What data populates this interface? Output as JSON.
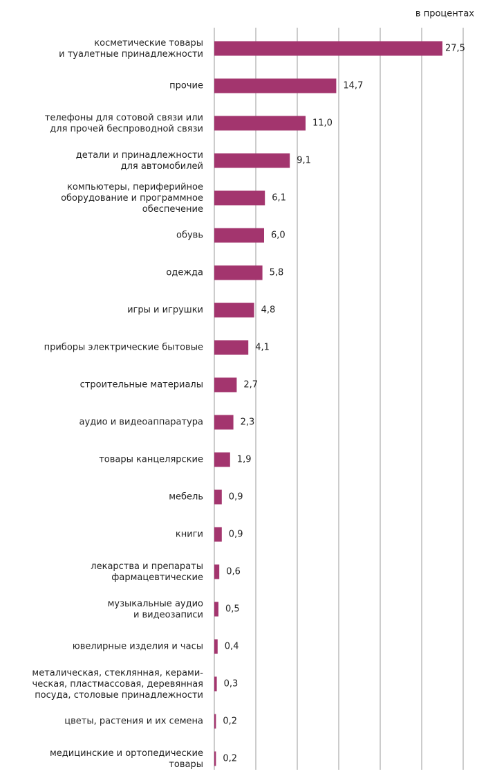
{
  "chart_data": {
    "type": "bar",
    "orientation": "horizontal",
    "subtitle": "в процентах",
    "categories": [
      "косметические товары\nи туалетные принадлежности",
      "прочие",
      "телефоны для сотовой связи или\nдля прочей беспроводной связи",
      "детали и принадлежности\nдля автомобилей",
      "компьютеры, периферийное\nоборудование и программное\nобеспечение",
      "обувь",
      "одежда",
      "игры и игрушки",
      "приборы электрические бытовые",
      "строительные материалы",
      "аудио и видеоаппаратура",
      "товары канцелярские",
      "мебель",
      "книги",
      "лекарства и препараты\nфармацевтические",
      "музыкальные аудио\nи видеозаписи",
      "ювелирные изделия и часы",
      "металическая, стеклянная, керами-\nческая, пластмассовая, деревянная\nпосуда, столовые принадлежности",
      "цветы, растения и их семена",
      "медицинские и ортопедические\nтовары"
    ],
    "values": [
      27.5,
      14.7,
      11.0,
      9.1,
      6.1,
      6.0,
      5.8,
      4.8,
      4.1,
      2.7,
      2.3,
      1.9,
      0.9,
      0.9,
      0.6,
      0.5,
      0.4,
      0.3,
      0.2,
      0.2
    ],
    "value_labels": [
      "27,5",
      "14,7",
      "11,0",
      "9,1",
      "6,1",
      "6,0",
      "5,8",
      "4,8",
      "4,1",
      "2,7",
      "2,3",
      "1,9",
      "0,9",
      "0,9",
      "0,6",
      "0,5",
      "0,4",
      "0,3",
      "0,2",
      "0,2"
    ],
    "color": "#a3356e",
    "xlim": [
      0,
      30
    ],
    "xticks": [
      0,
      5,
      10,
      15,
      20,
      25,
      30
    ],
    "grid": true
  }
}
